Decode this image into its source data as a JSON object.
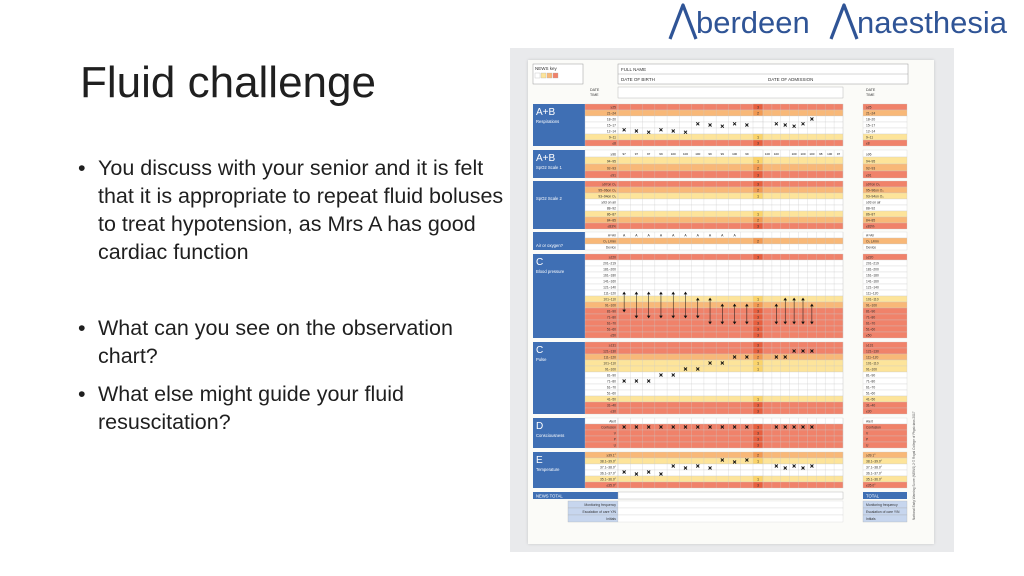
{
  "logo": {
    "text_left": "berdeen",
    "text_right": "naesthesia",
    "color": "#2f5496"
  },
  "slide": {
    "title": "Fluid challenge",
    "bullets": [
      "You discuss with your senior and it is felt that it is appropriate to repeat fluid boluses to treat hypotension, as Mrs A has good cardiac function",
      "What can you see on the observation chart?",
      "What else might guide your fluid resuscitation?"
    ]
  },
  "obs_chart": {
    "header": {
      "news_key": "NEWS key",
      "full_name": "FULL NAME",
      "dob": "DATE OF BIRTH",
      "admission": "DATE OF ADMISSION",
      "date": "DATE",
      "time": "TIME"
    },
    "sections": {
      "ab_resp": "A+B",
      "respirations": "Respirations",
      "ab_spo2": "A+B",
      "spo2_scale1": "SpO2 Scale 1",
      "spo2_scale2": "SpO2 Scale 2",
      "air_oxygen": "Air or oxygen?",
      "c_bp": "C",
      "blood_pressure": "Blood pressure",
      "c_pulse": "C",
      "pulse": "Pulse",
      "d": "D",
      "consciousness": "Consciousness",
      "e": "E",
      "temperature": "Temperature"
    },
    "rows": {
      "resp": [
        "≥25",
        "21–24",
        "18–20",
        "15–17",
        "12–14",
        "9–11",
        "≤8"
      ],
      "spo2_1": [
        "≥96",
        "94–95",
        "92–93",
        "≤91"
      ],
      "spo2_2": [
        "≥97on O₂",
        "95–96on O₂",
        "93–94on O₂",
        "≥93 on air",
        "88–92",
        "86–87",
        "84–85",
        "≤83%"
      ],
      "air": [
        "A=Air",
        "O₂ L/min",
        "Device"
      ],
      "bp": [
        "≥220",
        "201–219",
        "181–200",
        "161–180",
        "141–160",
        "121–140",
        "111–120",
        "101–110",
        "91–100",
        "81–90",
        "71–80",
        "61–70",
        "51–60",
        "≤50"
      ],
      "pulse": [
        "≥131",
        "121–130",
        "111–120",
        "101–110",
        "91–100",
        "81–90",
        "71–80",
        "61–70",
        "51–60",
        "41–50",
        "31–40",
        "≤30"
      ],
      "acvpu": [
        "Alert",
        "Confusion",
        "V",
        "P",
        "U"
      ],
      "temp": [
        "≥39.1°",
        "38.1–39.0°",
        "37.1–38.0°",
        "36.1–37.0°",
        "35.1–36.0°",
        "≤35.0°"
      ]
    },
    "spo2_values": [
      "97",
      "97",
      "97",
      "99",
      "100",
      "100",
      "100",
      "99",
      "99",
      "100",
      "99",
      "100",
      "100",
      "",
      "100",
      "100",
      "100",
      "98",
      "100",
      "97"
    ],
    "news_total": "NEWS TOTAL",
    "total_right": "TOTAL",
    "monitoring": "Monitoring frequency",
    "escalation": "Escalation of care Y/N",
    "initials": "Initials",
    "side_caption": "National Early Warning Score (NEWS) 2 © Royal College of Physicians 2017",
    "colors": {
      "red": "#f0826a",
      "orange": "#f8b878",
      "yellow": "#fde49a",
      "blue": "#3f6fb4"
    }
  }
}
